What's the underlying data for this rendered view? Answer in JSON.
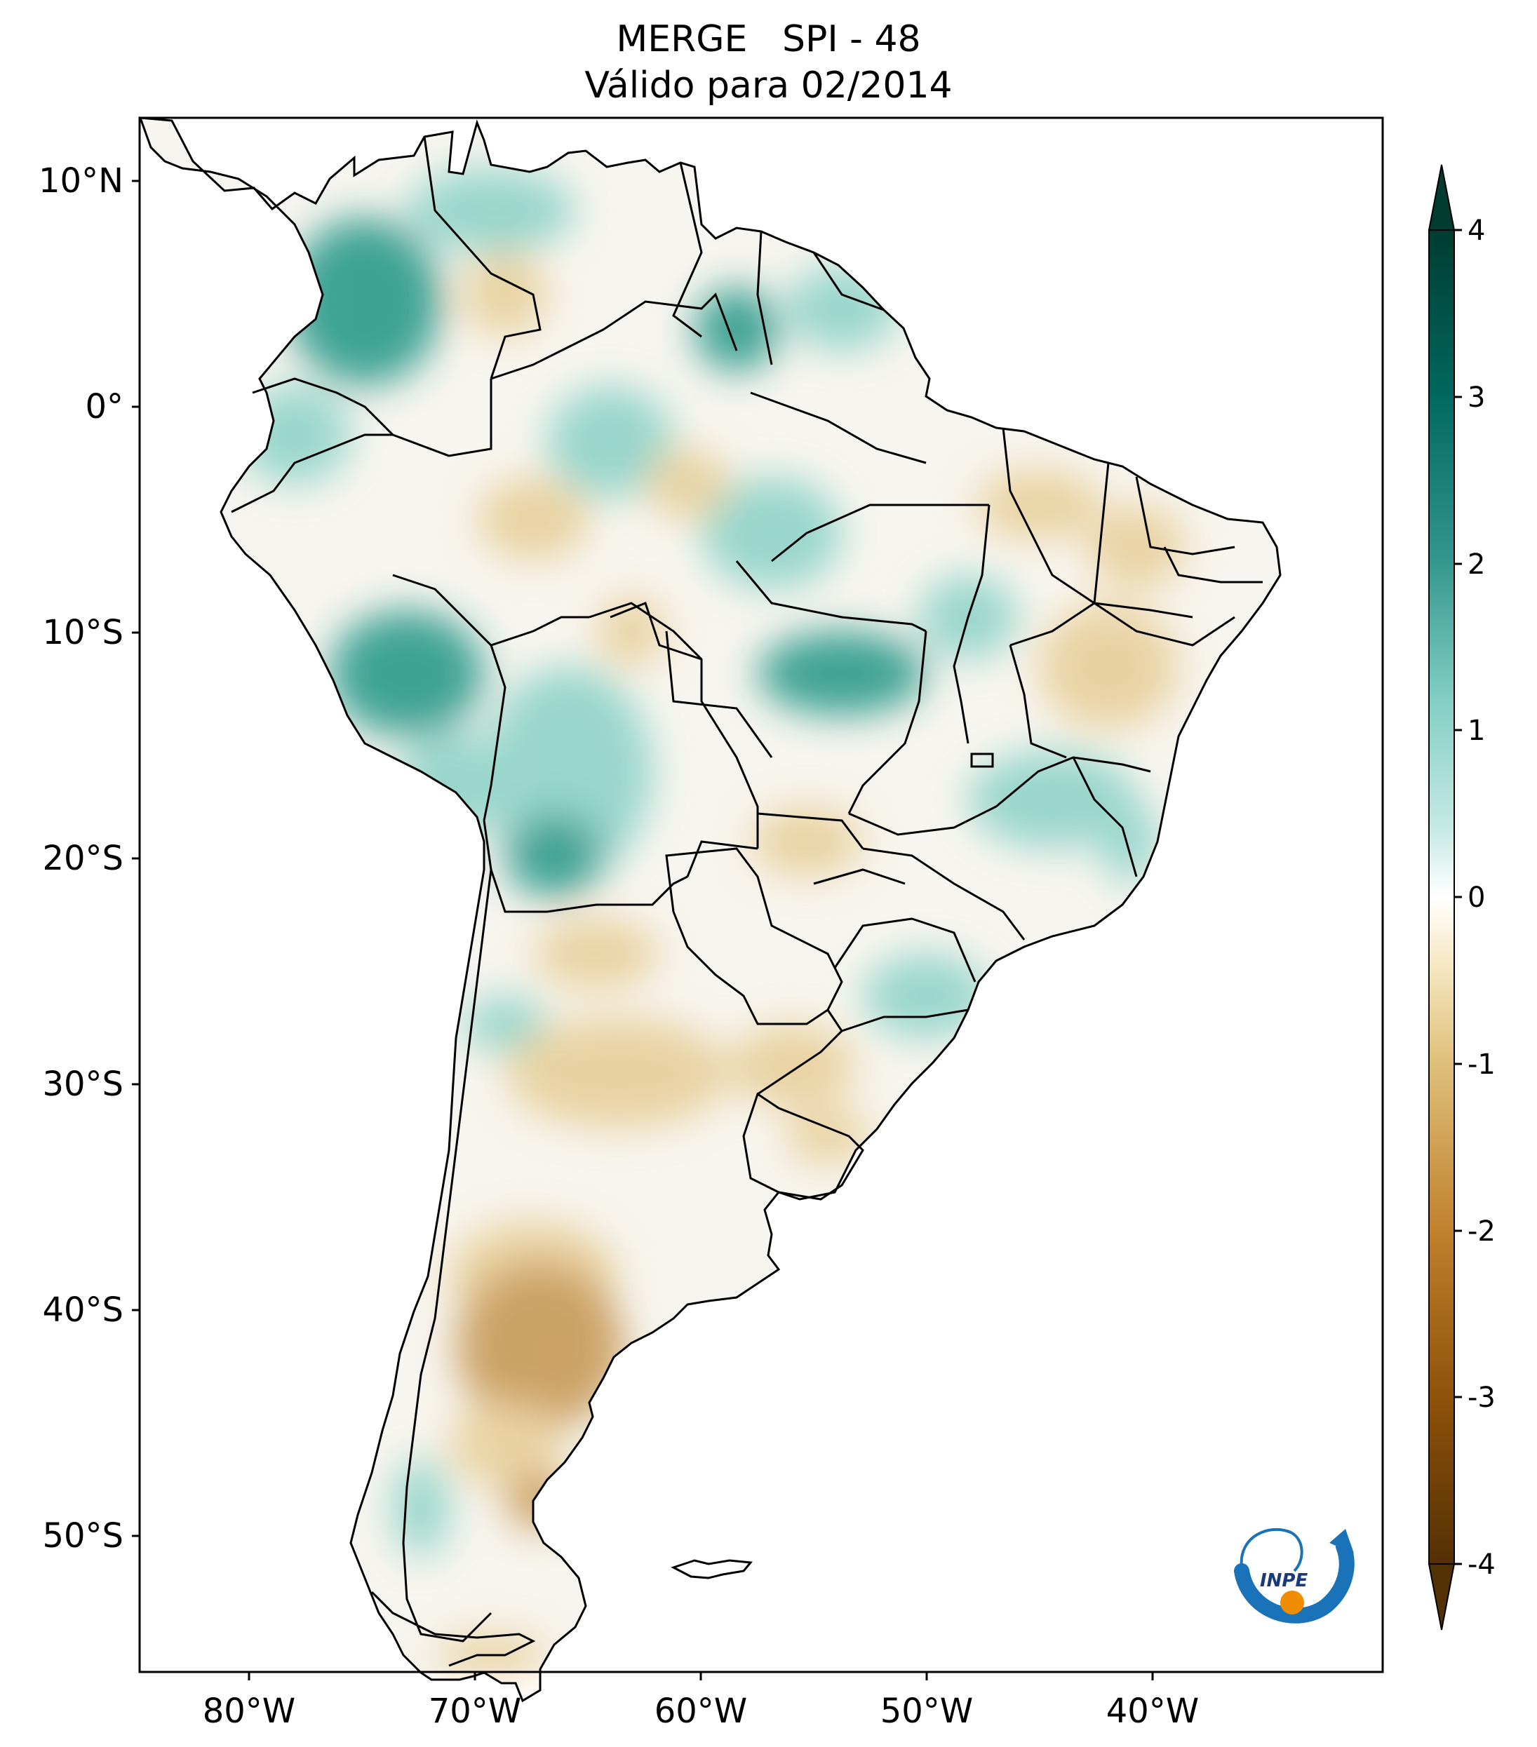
{
  "title": {
    "line1": "MERGE   SPI - 48",
    "line2": "Válido para 02/2014"
  },
  "axes": {
    "lat_labels": [
      "10°N",
      "0°",
      "10°S",
      "20°S",
      "30°S",
      "40°S",
      "50°S"
    ],
    "lon_labels": [
      "80°W",
      "70°W",
      "60°W",
      "50°W",
      "40°W"
    ]
  },
  "colorbar": {
    "ticks": [
      "4",
      "3",
      "2",
      "1",
      "0",
      "-1",
      "-2",
      "-3",
      "-4"
    ],
    "colors": [
      "#543005",
      "#8c510a",
      "#bf812d",
      "#dfc27d",
      "#f6e8c3",
      "#ffffff",
      "#c7eae5",
      "#80cdc1",
      "#35978f",
      "#01665e",
      "#003c30"
    ]
  },
  "logo": {
    "text": "INPE"
  },
  "colors": {
    "land": "#f7f5ef",
    "wet": "#8fd3c8",
    "very_wet": "#2a9a8a",
    "dry": "#e8cf9a",
    "very_dry": "#c79a58",
    "logo_blue": "#1a73b8",
    "logo_orange": "#f08c00"
  }
}
